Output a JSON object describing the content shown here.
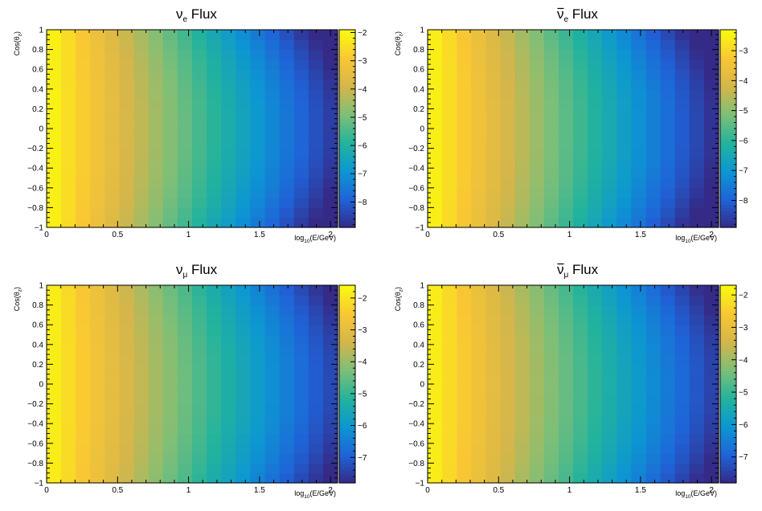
{
  "colors": {
    "palette": [
      "#352a87",
      "#1f63d8",
      "#0c97d2",
      "#23b39c",
      "#7dbf78",
      "#d5b64a",
      "#f9c734",
      "#f9fb0e"
    ]
  },
  "chart_data": [
    {
      "type": "heatmap",
      "title": "ν",
      "title_sub": "e",
      "title_rest": " Flux",
      "title_bar": false,
      "xlabel_main": "log",
      "xlabel_sub": "10",
      "xlabel_rest": "(E/GeV)",
      "ylabel_main": "Cos(θ",
      "ylabel_sub": "z",
      "ylabel_rest": ")",
      "xlim": [
        0,
        2.05
      ],
      "ylim": [
        -1,
        1
      ],
      "xticks": [
        {
          "v": 0,
          "label": "0"
        },
        {
          "v": 0.5,
          "label": "0.5"
        },
        {
          "v": 1,
          "label": "1"
        },
        {
          "v": 1.5,
          "label": "1.5"
        },
        {
          "v": 2,
          "label": "2"
        }
      ],
      "yticks": [
        {
          "v": -1,
          "label": "−1"
        },
        {
          "v": -0.8,
          "label": "−0.8"
        },
        {
          "v": -0.6,
          "label": "−0.6"
        },
        {
          "v": -0.4,
          "label": "−0.4"
        },
        {
          "v": -0.2,
          "label": "−0.2"
        },
        {
          "v": 0,
          "label": "0"
        },
        {
          "v": 0.2,
          "label": "0.2"
        },
        {
          "v": 0.4,
          "label": "0.4"
        },
        {
          "v": 0.6,
          "label": "0.6"
        },
        {
          "v": 0.8,
          "label": "0.8"
        },
        {
          "v": 1,
          "label": "1"
        }
      ],
      "zlim": [
        -8.9,
        -1.9
      ],
      "zticks": [
        {
          "v": -2,
          "label": "−2"
        },
        {
          "v": -3,
          "label": "−3"
        },
        {
          "v": -4,
          "label": "−4"
        },
        {
          "v": -5,
          "label": "−5"
        },
        {
          "v": -6,
          "label": "−6"
        },
        {
          "v": -7,
          "label": "−7"
        },
        {
          "v": -8,
          "label": "−8"
        }
      ],
      "x_bins": 20,
      "y_bins": 20,
      "z_center": -1.95,
      "z_slope": -3.3,
      "z_angular": 0.55,
      "z_curve": 0.1
    },
    {
      "type": "heatmap",
      "title": "ν",
      "title_sub": "e",
      "title_rest": " Flux",
      "title_bar": true,
      "xlabel_main": "log",
      "xlabel_sub": "10",
      "xlabel_rest": "(E/GeV)",
      "ylabel_main": "Cos(θ",
      "ylabel_sub": "z",
      "ylabel_rest": ")",
      "xlim": [
        0,
        2.05
      ],
      "ylim": [
        -1,
        1
      ],
      "xticks": [
        {
          "v": 0,
          "label": "0"
        },
        {
          "v": 0.5,
          "label": "0.5"
        },
        {
          "v": 1,
          "label": "1"
        },
        {
          "v": 1.5,
          "label": "1.5"
        },
        {
          "v": 2,
          "label": "2"
        }
      ],
      "yticks": [
        {
          "v": -1,
          "label": "−1"
        },
        {
          "v": -0.8,
          "label": "−0.8"
        },
        {
          "v": -0.6,
          "label": "−0.6"
        },
        {
          "v": -0.4,
          "label": "−0.4"
        },
        {
          "v": -0.2,
          "label": "−0.2"
        },
        {
          "v": 0,
          "label": "0"
        },
        {
          "v": 0.2,
          "label": "0.2"
        },
        {
          "v": 0.4,
          "label": "0.4"
        },
        {
          "v": 0.6,
          "label": "0.6"
        },
        {
          "v": 0.8,
          "label": "0.8"
        },
        {
          "v": 1,
          "label": "1"
        }
      ],
      "zlim": [
        -8.9,
        -2.3
      ],
      "zticks": [
        {
          "v": -3,
          "label": "−3"
        },
        {
          "v": -4,
          "label": "−4"
        },
        {
          "v": -5,
          "label": "−5"
        },
        {
          "v": -6,
          "label": "−6"
        },
        {
          "v": -7,
          "label": "−7"
        },
        {
          "v": -8,
          "label": "−8"
        }
      ],
      "x_bins": 20,
      "y_bins": 20,
      "z_center": -2.35,
      "z_slope": -3.2,
      "z_angular": 0.5,
      "z_curve": 0.1
    },
    {
      "type": "heatmap",
      "title": "ν",
      "title_sub": "μ",
      "title_rest": " Flux",
      "title_bar": false,
      "xlabel_main": "log",
      "xlabel_sub": "10",
      "xlabel_rest": "(E/GeV)",
      "ylabel_main": "Cos(θ",
      "ylabel_sub": "z",
      "ylabel_rest": ")",
      "xlim": [
        0,
        2.05
      ],
      "ylim": [
        -1,
        1
      ],
      "xticks": [
        {
          "v": 0,
          "label": "0"
        },
        {
          "v": 0.5,
          "label": "0.5"
        },
        {
          "v": 1,
          "label": "1"
        },
        {
          "v": 1.5,
          "label": "1.5"
        },
        {
          "v": 2,
          "label": "2"
        }
      ],
      "yticks": [
        {
          "v": -1,
          "label": "−1"
        },
        {
          "v": -0.8,
          "label": "−0.8"
        },
        {
          "v": -0.6,
          "label": "−0.6"
        },
        {
          "v": -0.4,
          "label": "−0.4"
        },
        {
          "v": -0.2,
          "label": "−0.2"
        },
        {
          "v": 0,
          "label": "0"
        },
        {
          "v": 0.2,
          "label": "0.2"
        },
        {
          "v": 0.4,
          "label": "0.4"
        },
        {
          "v": 0.6,
          "label": "0.6"
        },
        {
          "v": 0.8,
          "label": "0.8"
        },
        {
          "v": 1,
          "label": "1"
        }
      ],
      "zlim": [
        -7.8,
        -1.6
      ],
      "zticks": [
        {
          "v": -2,
          "label": "−2"
        },
        {
          "v": -3,
          "label": "−3"
        },
        {
          "v": -4,
          "label": "−4"
        },
        {
          "v": -5,
          "label": "−5"
        },
        {
          "v": -6,
          "label": "−6"
        },
        {
          "v": -7,
          "label": "−7"
        }
      ],
      "x_bins": 20,
      "y_bins": 20,
      "z_center": -1.7,
      "z_slope": -2.8,
      "z_angular": 0.4,
      "z_curve": 0.05
    },
    {
      "type": "heatmap",
      "title": "ν",
      "title_sub": "μ",
      "title_rest": " Flux",
      "title_bar": true,
      "xlabel_main": "log",
      "xlabel_sub": "10",
      "xlabel_rest": "(E/GeV)",
      "ylabel_main": "Cos(θ",
      "ylabel_sub": "z",
      "ylabel_rest": ")",
      "xlim": [
        0,
        2.05
      ],
      "ylim": [
        -1,
        1
      ],
      "xticks": [
        {
          "v": 0,
          "label": "0"
        },
        {
          "v": 0.5,
          "label": "0.5"
        },
        {
          "v": 1,
          "label": "1"
        },
        {
          "v": 1.5,
          "label": "1.5"
        },
        {
          "v": 2,
          "label": "2"
        }
      ],
      "yticks": [
        {
          "v": -1,
          "label": "−1"
        },
        {
          "v": -0.8,
          "label": "−0.8"
        },
        {
          "v": -0.6,
          "label": "−0.6"
        },
        {
          "v": -0.4,
          "label": "−0.4"
        },
        {
          "v": -0.2,
          "label": "−0.2"
        },
        {
          "v": 0,
          "label": "0"
        },
        {
          "v": 0.2,
          "label": "0.2"
        },
        {
          "v": 0.4,
          "label": "0.4"
        },
        {
          "v": 0.6,
          "label": "0.6"
        },
        {
          "v": 0.8,
          "label": "0.8"
        },
        {
          "v": 1,
          "label": "1"
        }
      ],
      "zlim": [
        -7.8,
        -1.7
      ],
      "zticks": [
        {
          "v": -2,
          "label": "−2"
        },
        {
          "v": -3,
          "label": "−3"
        },
        {
          "v": -4,
          "label": "−4"
        },
        {
          "v": -5,
          "label": "−5"
        },
        {
          "v": -6,
          "label": "−6"
        },
        {
          "v": -7,
          "label": "−7"
        }
      ],
      "x_bins": 20,
      "y_bins": 20,
      "z_center": -1.8,
      "z_slope": -2.8,
      "z_angular": 0.4,
      "z_curve": 0.05
    }
  ]
}
